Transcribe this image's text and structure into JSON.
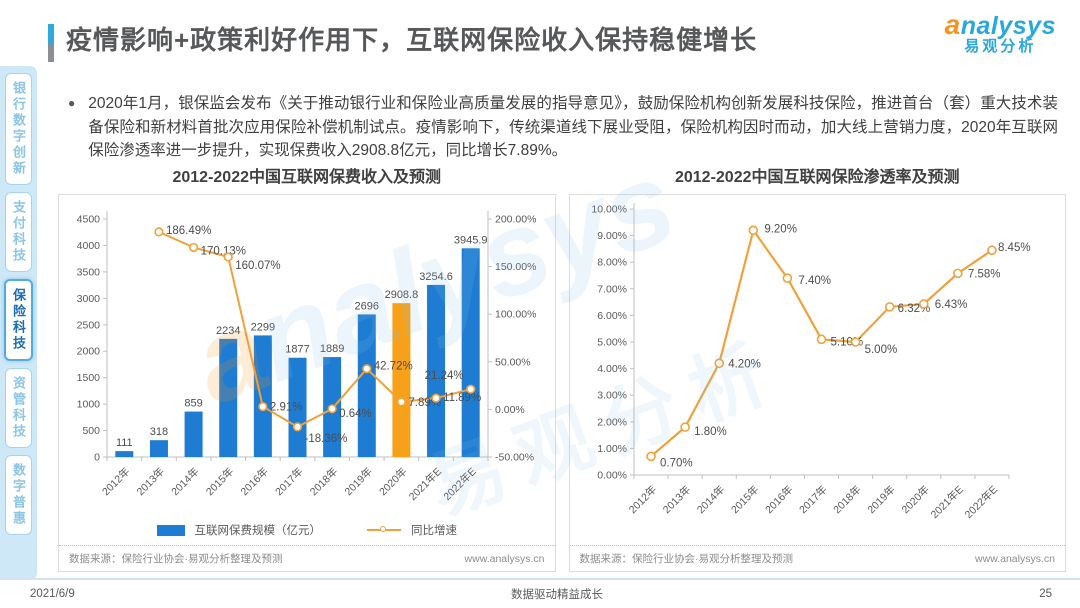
{
  "page": {
    "title": "疫情影响+政策利好作用下，互联网保险收入保持稳健增长",
    "bullet_marker": "●",
    "bullet_text": "2020年1月，银保监会发布《关于推动银行业和保险业高质量发展的指导意见》，鼓励保险机构创新发展科技保险，推进首台（套）重大技术装备保险和新材料首批次应用保险补偿机制试点。疫情影响下，传统渠道线下展业受阻，保险机构因时而动，加大线上营销力度，2020年互联网保险渗透率进一步提升，实现保费收入2908.8亿元，同比增长7.89%。",
    "footer": {
      "date": "2021/6/9",
      "slogan": "数据驱动精益成长",
      "page_number": "25"
    }
  },
  "brand": {
    "logo_a": "a",
    "logo_rest": "nalysys",
    "logo_cn": "易观分析",
    "watermark_a": "a",
    "watermark_rest": "nalysys",
    "watermark_cn": "易观分析",
    "orange": "#F7941E",
    "blue": "#29A8DC"
  },
  "sidebar": {
    "items": [
      {
        "label": "银行数字创新",
        "active": false
      },
      {
        "label": "支付科技",
        "active": false
      },
      {
        "label": "保险科技",
        "active": true
      },
      {
        "label": "资管科技",
        "active": false
      },
      {
        "label": "数字普惠",
        "active": false
      }
    ]
  },
  "chart_data": [
    {
      "type": "bar",
      "title": "2012-2022中国互联网保费收入及预测",
      "categories": [
        "2012年",
        "2013年",
        "2014年",
        "2015年",
        "2016年",
        "2017年",
        "2018年",
        "2019年",
        "2020年",
        "2021年E",
        "2022年E"
      ],
      "series": [
        {
          "name": "互联网保费规模（亿元）",
          "type": "bar",
          "axis": "left",
          "values": [
            111,
            318,
            859,
            2234,
            2299,
            1877,
            1889,
            2696,
            2908.8,
            3254.6,
            3945.9
          ],
          "labels": [
            "111",
            "318",
            "859",
            "2234",
            "2299",
            "1877",
            "1889",
            "2696",
            "2908.8",
            "3254.6",
            "3945.9"
          ],
          "color": "#1e7cd2",
          "highlight_index": 8,
          "highlight_color": "#f7a11a"
        },
        {
          "name": "同比增速",
          "type": "line",
          "axis": "right",
          "values": [
            null,
            186.49,
            170.13,
            160.07,
            2.91,
            -18.36,
            0.64,
            42.72,
            7.89,
            11.89,
            21.24
          ],
          "labels": [
            null,
            "186.49%",
            "170.13%",
            "160.07%",
            "2.91%",
            "-18.36%",
            "0.64%",
            "42.72%",
            "7.89%",
            "11.89%",
            "21.24%"
          ],
          "color": "#efa23b"
        }
      ],
      "left_axis": {
        "min": 0,
        "max": 4500,
        "step": 500
      },
      "right_axis": {
        "min": -50,
        "max": 200,
        "step": 50,
        "format": "percent"
      },
      "grid": false,
      "legend_position": "bottom",
      "source": "数据来源：保险行业协会·易观分析整理及预测",
      "source_url": "www.analysys.cn"
    },
    {
      "type": "line",
      "title": "2012-2022中国互联网保险渗透率及预测",
      "categories": [
        "2012年",
        "2013年",
        "2014年",
        "2015年",
        "2016年",
        "2017年",
        "2018年",
        "2019年",
        "2020年",
        "2021年E",
        "2022年E"
      ],
      "series": [
        {
          "name": "互联网保险渗透率",
          "type": "line",
          "values": [
            0.7,
            1.8,
            4.2,
            9.2,
            7.4,
            5.1,
            5.0,
            6.32,
            6.43,
            7.58,
            8.45
          ],
          "labels": [
            "0.70%",
            "1.80%",
            "4.20%",
            "9.20%",
            "7.40%",
            "5.10%",
            "5.00%",
            "6.32%",
            "6.43%",
            "7.58%",
            "8.45%"
          ],
          "color": "#efa23b"
        }
      ],
      "y_axis": {
        "min": 0,
        "max": 10,
        "step": 1,
        "format": "percent2"
      },
      "grid": false,
      "source": "数据来源：保险行业协会·易观分析整理及预测",
      "source_url": "www.analysys.cn"
    }
  ]
}
